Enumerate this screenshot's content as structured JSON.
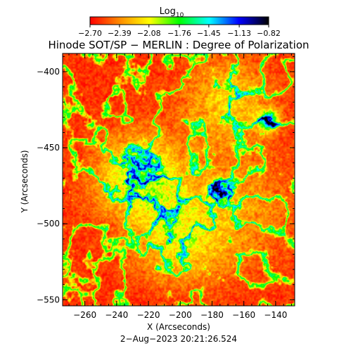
{
  "chart_data": {
    "type": "heatmap",
    "title": "Hinode SOT/SP − MERLIN : Degree of Polarization",
    "xlabel": "X (Arcseconds)",
    "ylabel": "Y (Arcseconds)",
    "timestamp": "2−Aug−2023 20:21:26.524",
    "xlim": [
      -274,
      -128
    ],
    "ylim": [
      -554,
      -388
    ],
    "x_ticks": [
      -260,
      -240,
      -220,
      -200,
      -180,
      -160,
      -140
    ],
    "x_tick_labels": [
      "−260",
      "−240",
      "−220",
      "−200",
      "−180",
      "−160",
      "−140"
    ],
    "y_ticks": [
      -400,
      -450,
      -500,
      -550
    ],
    "y_tick_labels": [
      "−400",
      "−450",
      "−500",
      "−550"
    ],
    "colorbar": {
      "label_base": "Log",
      "label_sub": "10",
      "scale": "log10",
      "range": [
        -2.7,
        -0.82
      ],
      "ticks": [
        -2.7,
        -2.39,
        -2.08,
        -1.76,
        -1.45,
        -1.13,
        -0.82
      ],
      "tick_labels": [
        "−2.70",
        "−2.39",
        "−2.08",
        "−1.76",
        "−1.45",
        "−1.13",
        "−0.82"
      ],
      "colormap": [
        "#ff0000",
        "#ff8c00",
        "#ffff00",
        "#00ff00",
        "#00ffff",
        "#0000ff",
        "#000000"
      ]
    },
    "features": [
      {
        "kind": "high-polarization network",
        "x": -225,
        "y": -470,
        "value": -1.2
      },
      {
        "kind": "high-polarization patch",
        "x": -175,
        "y": -478,
        "value": -0.9
      },
      {
        "kind": "high-polarization patch",
        "x": -145,
        "y": -432,
        "value": -0.9
      },
      {
        "kind": "network lane",
        "x": -170,
        "y": -420,
        "value": -1.8
      },
      {
        "kind": "network lane",
        "x": -200,
        "y": -510,
        "value": -1.7
      },
      {
        "kind": "diffuse moderate region",
        "x": -165,
        "y": -490,
        "value": -2.1
      }
    ]
  }
}
